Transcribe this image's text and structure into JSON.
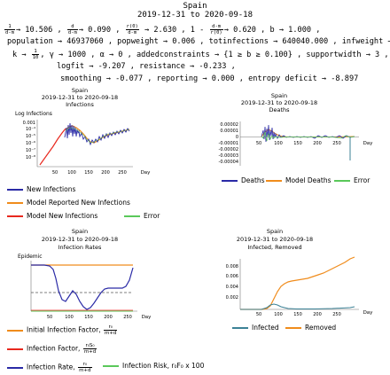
{
  "header": {
    "country": "Spain",
    "date_range": "2019-12-31 to 2020-09-18"
  },
  "params": {
    "r1_label": "→ 10.506 ,",
    "r1_dfrac_n": "1",
    "r1_dfrac_d": "d-m",
    "r1_b_label": "→ 0.090 ,",
    "r1_dfrac2_n": "d",
    "r1_dfrac2_d": "d-m",
    "r1_c_label": "→ 2.630 ,",
    "r1_rfrac_n": "r(0)",
    "r1_rfrac_d": "d-m",
    "r1_d_prefix": "1 -",
    "r1_d_label": "→ 0.620 ,  b → 1.000 ,",
    "r1_dfrac3_n": "d-m",
    "r1_dfrac3_d": "r(0)",
    "r2": "population → 46937060 ,  popweight → 0.006 ,  totinfections → 640040.000 ,  infweight → 0",
    "r3_prefix": "k →",
    "r3_kfrac_n": "1",
    "r3_kfrac_d": "10",
    "r3_rest": ",  γ → 1000 ,  α → 0 ,  addedconstraints → {1 ≥ b ≥ 0.100} ,  supportwidth → 3 ,  M →",
    "r4": "logfit → -9.207 ,  resistance → -0.233 ,",
    "r5": "smoothing → -0.077 ,  reporting → 0.000 ,  entropy deficit → -8.897"
  },
  "plots": {
    "infections": {
      "title": "Spain",
      "subtitle": "2019-12-31 to 2020-09-18",
      "name": "Infections",
      "ylabel": "Log Infections",
      "xlabel": "Day",
      "yticks": [
        "0.001",
        "10⁻⁴",
        "10⁻⁵",
        "10⁻⁶",
        "10⁻⁷",
        "10⁻⁸"
      ],
      "xticks": [
        "50",
        "100",
        "150",
        "200",
        "250"
      ]
    },
    "deaths": {
      "title": "Spain",
      "subtitle": "2019-12-31 to 2020-09-18",
      "name": "Deaths",
      "xlabel": "Day",
      "yticks": [
        "0.00002",
        "0.00001",
        "0",
        "-0.00001",
        "-0.00002",
        "-0.00003",
        "-0.00004"
      ],
      "xticks": [
        "50",
        "100",
        "150",
        "200",
        "250"
      ]
    },
    "rates": {
      "title": "Spain",
      "subtitle": "2019-12-31 to 2020-09-18",
      "name": "Infection Rates",
      "ylabel": "Epidemic",
      "xlabel": "Day",
      "xticks": [
        "50",
        "100",
        "150",
        "200",
        "250"
      ]
    },
    "removed": {
      "title": "Spain",
      "subtitle": "2019-12-31 to 2020-09-18",
      "name": "Infected, Removed",
      "xlabel": "Day",
      "yticks": [
        "0.008",
        "0.006",
        "0.004",
        "0.002"
      ],
      "xticks": [
        "50",
        "100",
        "150",
        "200",
        "250"
      ]
    }
  },
  "legends": {
    "infections": [
      "New Infections",
      "Model Reported New Infections",
      "Model New Infections",
      "Error"
    ],
    "deaths": [
      "Deaths",
      "Model Deaths",
      "Error"
    ],
    "rates": {
      "initial": "Initial Infection Factor,",
      "initial_frac_n": "r₀",
      "initial_frac_d": "m+d",
      "factor": "Infection Factor,",
      "factor_frac_n": "r₀S₀",
      "factor_frac_d": "m+d",
      "rate": "Infection Rate,",
      "rate_frac_n": "r₀",
      "rate_frac_d": "m+d",
      "risk": "Infection Risk, r₀F₀ x 100"
    },
    "removed": [
      "Infected",
      "Removed"
    ]
  },
  "colors": {
    "blue": "#2a2aa6",
    "orange": "#f08c1c",
    "red": "#e8281e",
    "green": "#5ac85a",
    "teal": "#3c8296",
    "dark_gold": "#c98b1d"
  }
}
